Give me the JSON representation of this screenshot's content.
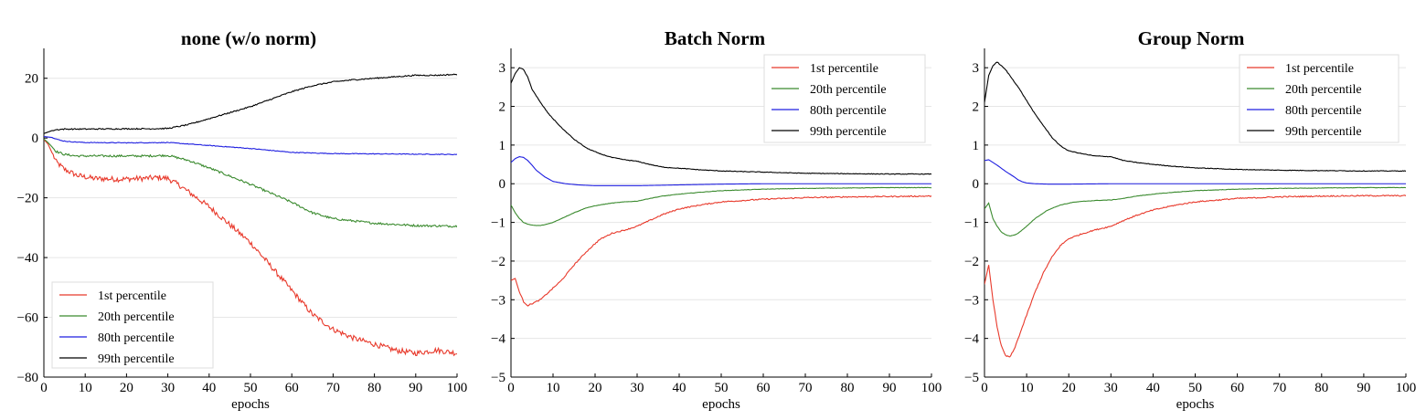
{
  "chart_data": [
    {
      "type": "line",
      "title": "none (w/o norm)",
      "xlabel": "epochs",
      "ylabel": "",
      "xlim": [
        0,
        100
      ],
      "ylim": [
        -80,
        30
      ],
      "xticks": [
        0,
        10,
        20,
        30,
        40,
        50,
        60,
        70,
        80,
        90,
        100
      ],
      "yticks": [
        -80,
        -60,
        -40,
        -20,
        0,
        20
      ],
      "grid": "horizontal",
      "legend_position": "bottom-left",
      "series": [
        {
          "name": "1st percentile",
          "color": "#e8392b",
          "noise": 0.9,
          "x": [
            0,
            1,
            2,
            3,
            5,
            8,
            12,
            18,
            24,
            28,
            30,
            33,
            36,
            40,
            45,
            50,
            55,
            60,
            65,
            70,
            75,
            80,
            85,
            90,
            95,
            100
          ],
          "y": [
            -0.5,
            -2,
            -5,
            -8,
            -10.5,
            -12.5,
            -13.5,
            -13.8,
            -13.5,
            -13.2,
            -13.5,
            -16,
            -19,
            -23,
            -29,
            -35,
            -43,
            -51,
            -59,
            -64,
            -67,
            -69,
            -71,
            -72,
            -71,
            -72
          ]
        },
        {
          "name": "20th percentile",
          "color": "#3a8a2e",
          "noise": 0.35,
          "x": [
            0,
            1,
            2,
            3,
            5,
            8,
            15,
            25,
            30,
            35,
            40,
            50,
            60,
            65,
            70,
            80,
            90,
            100
          ],
          "y": [
            -0.3,
            -1.5,
            -3,
            -4.5,
            -5.5,
            -6,
            -6,
            -6,
            -5.8,
            -7.5,
            -10,
            -15.5,
            -21.5,
            -25,
            -27,
            -28.5,
            -29.3,
            -29.5
          ]
        },
        {
          "name": "80th percentile",
          "color": "#1f1fe0",
          "noise": 0.12,
          "x": [
            0,
            2,
            4,
            6,
            10,
            20,
            30,
            40,
            50,
            60,
            70,
            80,
            90,
            100
          ],
          "y": [
            0.5,
            0.2,
            -0.8,
            -1.2,
            -1.5,
            -1.6,
            -1.5,
            -2.5,
            -3.5,
            -4.8,
            -5.2,
            -5.3,
            -5.4,
            -5.5
          ]
        },
        {
          "name": "99th percentile",
          "color": "#000000",
          "noise": 0.2,
          "x": [
            0,
            1,
            2,
            3,
            5,
            10,
            20,
            25,
            30,
            35,
            40,
            45,
            50,
            55,
            60,
            65,
            70,
            75,
            80,
            85,
            90,
            95,
            100
          ],
          "y": [
            1.5,
            2,
            2.5,
            2.8,
            3,
            3,
            3.1,
            3.1,
            3.2,
            4.5,
            6.5,
            8.5,
            10.5,
            13,
            15.5,
            17.5,
            18.8,
            19.5,
            20,
            20.5,
            21,
            21,
            21.3
          ]
        }
      ]
    },
    {
      "type": "line",
      "title": "Batch Norm",
      "xlabel": "epochs",
      "ylabel": "",
      "xlim": [
        0,
        100
      ],
      "ylim": [
        -5,
        3.5
      ],
      "xticks": [
        0,
        10,
        20,
        30,
        40,
        50,
        60,
        70,
        80,
        90,
        100
      ],
      "yticks": [
        -5,
        -4,
        -3,
        -2,
        -1,
        0,
        1,
        2,
        3
      ],
      "grid": "horizontal",
      "legend_position": "top-right",
      "series": [
        {
          "name": "1st percentile",
          "color": "#e8392b",
          "noise": 0.015,
          "x": [
            0,
            1,
            2,
            3,
            4,
            5,
            7,
            9,
            12,
            15,
            18,
            21,
            24,
            27,
            30,
            33,
            36,
            40,
            45,
            50,
            60,
            70,
            80,
            90,
            100
          ],
          "y": [
            -2.5,
            -2.45,
            -2.8,
            -3.05,
            -3.15,
            -3.1,
            -3.0,
            -2.8,
            -2.5,
            -2.1,
            -1.75,
            -1.45,
            -1.28,
            -1.2,
            -1.1,
            -0.95,
            -0.8,
            -0.65,
            -0.55,
            -0.47,
            -0.4,
            -0.36,
            -0.34,
            -0.33,
            -0.32
          ]
        },
        {
          "name": "20th percentile",
          "color": "#3a8a2e",
          "noise": 0.005,
          "x": [
            0,
            1,
            2,
            3,
            4,
            5,
            6,
            7,
            8,
            10,
            12,
            15,
            18,
            21,
            24,
            27,
            30,
            33,
            36,
            40,
            45,
            50,
            60,
            70,
            80,
            90,
            100
          ],
          "y": [
            -0.55,
            -0.75,
            -0.9,
            -1.0,
            -1.05,
            -1.07,
            -1.08,
            -1.08,
            -1.06,
            -1.0,
            -0.9,
            -0.75,
            -0.62,
            -0.55,
            -0.5,
            -0.47,
            -0.45,
            -0.38,
            -0.32,
            -0.27,
            -0.22,
            -0.18,
            -0.14,
            -0.12,
            -0.11,
            -0.1,
            -0.1
          ]
        },
        {
          "name": "80th percentile",
          "color": "#1f1fe0",
          "noise": 0.0,
          "x": [
            0,
            1,
            2,
            3,
            4,
            5,
            6,
            8,
            10,
            13,
            16,
            20,
            30,
            40,
            50,
            60,
            70,
            80,
            90,
            100
          ],
          "y": [
            0.55,
            0.65,
            0.7,
            0.68,
            0.6,
            0.48,
            0.35,
            0.18,
            0.06,
            0.0,
            -0.03,
            -0.05,
            -0.05,
            -0.03,
            -0.01,
            0.0,
            0.0,
            0.0,
            0.0,
            0.0
          ]
        },
        {
          "name": "99th percentile",
          "color": "#000000",
          "noise": 0.008,
          "x": [
            0,
            1,
            2,
            3,
            4,
            5,
            7,
            9,
            12,
            15,
            18,
            21,
            24,
            27,
            30,
            33,
            36,
            40,
            45,
            50,
            60,
            70,
            80,
            90,
            100
          ],
          "y": [
            2.6,
            2.85,
            3.0,
            2.95,
            2.75,
            2.45,
            2.1,
            1.8,
            1.45,
            1.15,
            0.92,
            0.78,
            0.68,
            0.62,
            0.58,
            0.5,
            0.43,
            0.4,
            0.36,
            0.33,
            0.3,
            0.27,
            0.26,
            0.25,
            0.25
          ]
        }
      ]
    },
    {
      "type": "line",
      "title": "Group Norm",
      "xlabel": "epochs",
      "ylabel": "",
      "xlim": [
        0,
        100
      ],
      "ylim": [
        -5,
        3.5
      ],
      "xticks": [
        0,
        10,
        20,
        30,
        40,
        50,
        60,
        70,
        80,
        90,
        100
      ],
      "yticks": [
        -5,
        -4,
        -3,
        -2,
        -1,
        0,
        1,
        2,
        3
      ],
      "grid": "horizontal",
      "legend_position": "top-right",
      "series": [
        {
          "name": "1st percentile",
          "color": "#e8392b",
          "noise": 0.015,
          "x": [
            0,
            1,
            2,
            3,
            4,
            5,
            6,
            7,
            8,
            10,
            12,
            14,
            16,
            18,
            20,
            23,
            26,
            30,
            33,
            36,
            40,
            45,
            50,
            60,
            70,
            80,
            90,
            100
          ],
          "y": [
            -2.6,
            -2.1,
            -3.0,
            -3.7,
            -4.2,
            -4.45,
            -4.48,
            -4.3,
            -4.0,
            -3.4,
            -2.8,
            -2.3,
            -1.9,
            -1.6,
            -1.42,
            -1.3,
            -1.2,
            -1.1,
            -0.95,
            -0.82,
            -0.68,
            -0.56,
            -0.47,
            -0.38,
            -0.34,
            -0.32,
            -0.31,
            -0.31
          ]
        },
        {
          "name": "20th percentile",
          "color": "#3a8a2e",
          "noise": 0.005,
          "x": [
            0,
            1,
            2,
            3,
            4,
            5,
            6,
            7,
            8,
            10,
            12,
            15,
            18,
            21,
            24,
            27,
            30,
            33,
            36,
            40,
            45,
            50,
            60,
            70,
            80,
            90,
            100
          ],
          "y": [
            -0.65,
            -0.5,
            -0.9,
            -1.1,
            -1.25,
            -1.32,
            -1.35,
            -1.33,
            -1.28,
            -1.1,
            -0.9,
            -0.68,
            -0.55,
            -0.48,
            -0.45,
            -0.43,
            -0.42,
            -0.38,
            -0.32,
            -0.27,
            -0.22,
            -0.18,
            -0.14,
            -0.12,
            -0.11,
            -0.1,
            -0.1
          ]
        },
        {
          "name": "80th percentile",
          "color": "#1f1fe0",
          "noise": 0.0,
          "x": [
            0,
            1,
            2,
            3,
            4,
            5,
            6,
            7,
            8,
            9,
            10,
            12,
            15,
            20,
            30,
            40,
            50,
            60,
            70,
            80,
            90,
            100
          ],
          "y": [
            0.6,
            0.62,
            0.55,
            0.48,
            0.4,
            0.32,
            0.25,
            0.18,
            0.1,
            0.05,
            0.02,
            0.0,
            -0.01,
            -0.01,
            0.0,
            0.0,
            0.0,
            0.0,
            0.0,
            0.0,
            0.0,
            0.0
          ]
        },
        {
          "name": "99th percentile",
          "color": "#000000",
          "noise": 0.008,
          "x": [
            0,
            1,
            2,
            3,
            4,
            5,
            6,
            8,
            10,
            12,
            14,
            16,
            18,
            20,
            23,
            26,
            30,
            33,
            36,
            40,
            45,
            50,
            60,
            70,
            80,
            90,
            100
          ],
          "y": [
            2.1,
            2.8,
            3.05,
            3.15,
            3.05,
            2.95,
            2.8,
            2.5,
            2.15,
            1.8,
            1.5,
            1.2,
            0.98,
            0.85,
            0.78,
            0.72,
            0.7,
            0.6,
            0.55,
            0.5,
            0.45,
            0.41,
            0.37,
            0.35,
            0.34,
            0.33,
            0.33
          ]
        }
      ]
    }
  ]
}
